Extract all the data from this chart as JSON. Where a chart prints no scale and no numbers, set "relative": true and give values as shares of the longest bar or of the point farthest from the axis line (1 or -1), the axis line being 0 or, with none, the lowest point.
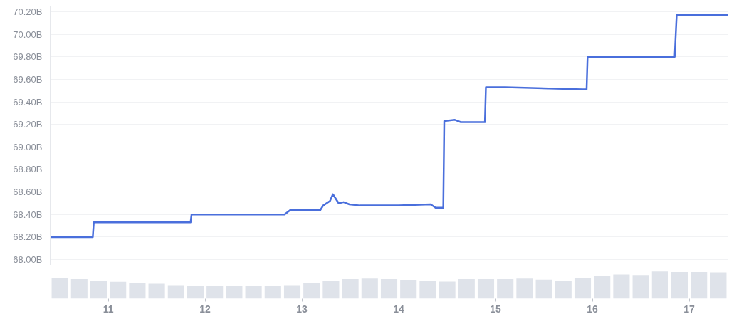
{
  "chart_data": [
    {
      "type": "line",
      "x": [
        10.4,
        10.84,
        10.85,
        11.85,
        11.86,
        12.82,
        12.88,
        13.19,
        13.22,
        13.29,
        13.32,
        13.38,
        13.43,
        13.49,
        13.6,
        14.0,
        14.33,
        14.38,
        14.46,
        14.47,
        14.58,
        14.64,
        14.89,
        14.9,
        15.1,
        15.9,
        15.94,
        15.95,
        16.85,
        16.87,
        17.4
      ],
      "series": [
        {
          "color": "#4a6fdc",
          "values": [
            68.2,
            68.2,
            68.33,
            68.33,
            68.4,
            68.4,
            68.44,
            68.44,
            68.48,
            68.52,
            68.58,
            68.5,
            68.51,
            68.49,
            68.48,
            68.48,
            68.49,
            68.46,
            68.46,
            69.23,
            69.24,
            69.22,
            69.22,
            69.53,
            69.53,
            69.51,
            69.51,
            69.8,
            69.8,
            70.17,
            70.17
          ]
        }
      ],
      "xlim": [
        10.4,
        17.4
      ],
      "ylim": [
        67.95,
        70.25
      ],
      "yticks": [
        {
          "value": 68.0,
          "label": "68.00B"
        },
        {
          "value": 68.2,
          "label": "68.20B"
        },
        {
          "value": 68.4,
          "label": "68.40B"
        },
        {
          "value": 68.6,
          "label": "68.60B"
        },
        {
          "value": 68.8,
          "label": "68.80B"
        },
        {
          "value": 69.0,
          "label": "69.00B"
        },
        {
          "value": 69.2,
          "label": "69.20B"
        },
        {
          "value": 69.4,
          "label": "69.40B"
        },
        {
          "value": 69.6,
          "label": "69.60B"
        },
        {
          "value": 69.8,
          "label": "69.80B"
        },
        {
          "value": 70.0,
          "label": "70.00B"
        },
        {
          "value": 70.2,
          "label": "70.20B"
        }
      ],
      "grid": "y",
      "tick_labels": "y"
    },
    {
      "type": "bar",
      "relative": true,
      "x": [
        10.5,
        10.7,
        10.9,
        11.1,
        11.3,
        11.5,
        11.7,
        11.9,
        12.1,
        12.3,
        12.5,
        12.7,
        12.9,
        13.1,
        13.3,
        13.5,
        13.7,
        13.9,
        14.1,
        14.3,
        14.5,
        14.7,
        14.9,
        15.1,
        15.3,
        15.5,
        15.7,
        15.9,
        16.1,
        16.3,
        16.5,
        16.7,
        16.9,
        17.1,
        17.3
      ],
      "series": [
        {
          "color": "#dfe3ea",
          "values": [
            0.77,
            0.72,
            0.66,
            0.62,
            0.59,
            0.55,
            0.5,
            0.47,
            0.46,
            0.46,
            0.46,
            0.47,
            0.5,
            0.56,
            0.64,
            0.72,
            0.74,
            0.72,
            0.69,
            0.64,
            0.63,
            0.72,
            0.72,
            0.72,
            0.74,
            0.7,
            0.67,
            0.76,
            0.85,
            0.89,
            0.87,
            1.0,
            0.98,
            0.98,
            0.97
          ]
        }
      ],
      "xlim": [
        10.4,
        17.4
      ],
      "xticks": [
        11,
        12,
        13,
        14,
        15,
        16,
        17
      ],
      "tick_labels": "x"
    }
  ]
}
